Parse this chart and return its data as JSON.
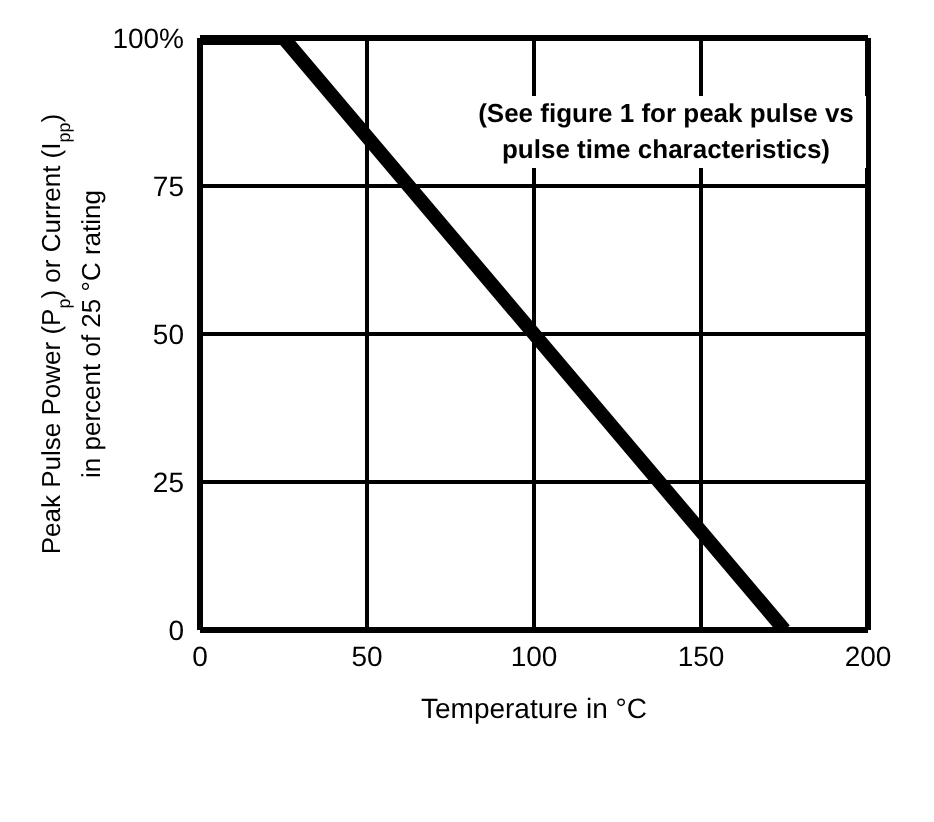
{
  "chart_data": {
    "type": "line",
    "xlabel": "Temperature in °C",
    "ylabel": "Peak Pulse Power (P$_{p}$) or Current (I$_{pp}$)\nin percent of 25 °C rating",
    "annotations": [
      "(See figure 1 for peak pulse vs pulse time characteristics)"
    ],
    "series": [
      {
        "color": "#000000",
        "x": [
          0,
          25,
          175
        ],
        "values": [
          100,
          100,
          0
        ]
      }
    ],
    "xlim": [
      0,
      200
    ],
    "xticks": [
      0,
      50,
      100,
      150,
      200
    ],
    "ylim": [
      0,
      100
    ],
    "yticks": [
      0,
      25,
      50,
      75,
      {
        "value": 100,
        "label": "100%"
      }
    ],
    "grid": true,
    "marker": "none",
    "line_style": "solid"
  }
}
